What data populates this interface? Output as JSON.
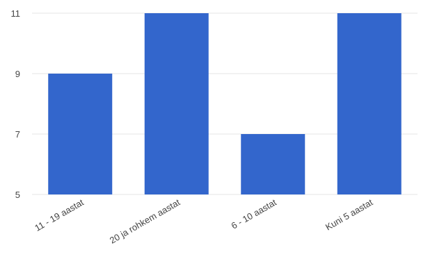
{
  "chart_data": {
    "type": "bar",
    "categories": [
      "11 - 19 aastat",
      "20 ja rohkem aastat",
      "6 - 10 aastat",
      "Kuni 5 aastat"
    ],
    "values": [
      9,
      11,
      7,
      11
    ],
    "ylim": [
      5,
      11
    ],
    "yticks": [
      5,
      7,
      9,
      11
    ],
    "grid": true,
    "legend": "none",
    "bar_color": "#3366cc",
    "grid_color": "#e6e6e6",
    "text_color": "#444444"
  }
}
